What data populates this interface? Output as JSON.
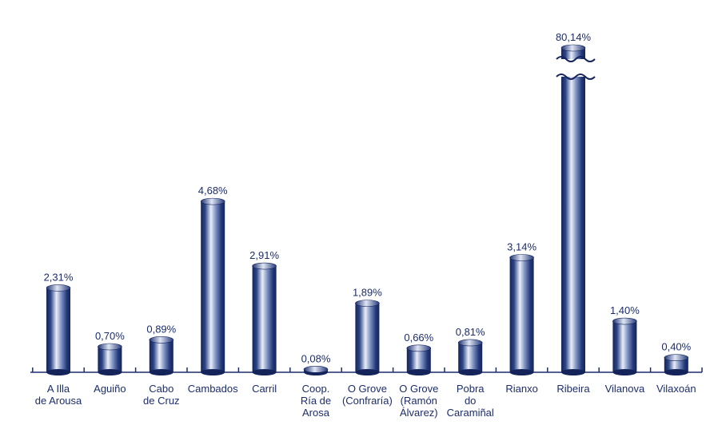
{
  "chart_data": {
    "type": "bar",
    "style": "3d-cylinder",
    "title": "",
    "xlabel": "",
    "ylabel": "",
    "grid": false,
    "legend": "none",
    "broken_axis": true,
    "ylim": [
      0,
      5.5
    ],
    "categories": [
      [
        "A Illa",
        "de Arousa"
      ],
      [
        "Aguiño"
      ],
      [
        "Cabo",
        "de Cruz"
      ],
      [
        "Cambados"
      ],
      [
        "Carril"
      ],
      [
        "Coop.",
        "Ría de",
        "Arosa"
      ],
      [
        "O Grove",
        "(Confraría)"
      ],
      [
        "O Grove",
        "(Ramón",
        "Álvarez)"
      ],
      [
        "Pobra",
        "do",
        "Caramiñal"
      ],
      [
        "Rianxo"
      ],
      [
        "Ribeira"
      ],
      [
        "Vilanova"
      ],
      [
        "Vilaxoán"
      ]
    ],
    "values": [
      2.31,
      0.7,
      0.89,
      4.68,
      2.91,
      0.08,
      1.89,
      0.66,
      0.81,
      3.14,
      80.14,
      1.4,
      0.4
    ],
    "value_labels": [
      "2,31%",
      "0,70%",
      "0,89%",
      "4,68%",
      "2,91%",
      "0,08%",
      "1,89%",
      "0,66%",
      "0,81%",
      "3,14%",
      "80,14%",
      "1,40%",
      "0,40%"
    ],
    "colors": {
      "bar_dark": "#14245a",
      "bar_light": "#e9eef8",
      "bar_mid": "#3b5394",
      "text": "#1c2d6b",
      "axis": "#1c2d6b"
    }
  }
}
